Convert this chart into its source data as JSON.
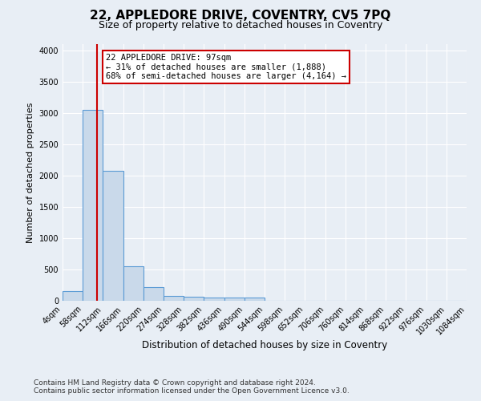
{
  "title": "22, APPLEDORE DRIVE, COVENTRY, CV5 7PQ",
  "subtitle": "Size of property relative to detached houses in Coventry",
  "xlabel": "Distribution of detached houses by size in Coventry",
  "ylabel": "Number of detached properties",
  "footer_line1": "Contains HM Land Registry data © Crown copyright and database right 2024.",
  "footer_line2": "Contains public sector information licensed under the Open Government Licence v3.0.",
  "bar_edges": [
    4,
    58,
    112,
    166,
    220,
    274,
    328,
    382,
    436,
    490,
    544,
    598,
    652,
    706,
    760,
    814,
    868,
    922,
    976,
    1030,
    1084
  ],
  "bar_heights": [
    150,
    3050,
    2080,
    550,
    220,
    75,
    60,
    55,
    50,
    50,
    0,
    0,
    0,
    0,
    0,
    0,
    0,
    0,
    0,
    0
  ],
  "bar_color": "#c9d9ea",
  "bar_edgecolor": "#5b9bd5",
  "property_size": 97,
  "vline_color": "#cc0000",
  "annotation_line1": "22 APPLEDORE DRIVE: 97sqm",
  "annotation_line2": "← 31% of detached houses are smaller (1,888)",
  "annotation_line3": "68% of semi-detached houses are larger (4,164) →",
  "annotation_box_color": "#cc0000",
  "annotation_bg_color": "#ffffff",
  "ylim": [
    0,
    4100
  ],
  "yticks": [
    0,
    500,
    1000,
    1500,
    2000,
    2500,
    3000,
    3500,
    4000
  ],
  "bg_color": "#e8eef5",
  "plot_bg_color": "#e8eef5",
  "grid_color": "#ffffff",
  "title_fontsize": 11,
  "subtitle_fontsize": 9,
  "tick_fontsize": 7,
  "ylabel_fontsize": 8,
  "xlabel_fontsize": 8.5,
  "annotation_fontsize": 7.5,
  "footer_fontsize": 6.5
}
